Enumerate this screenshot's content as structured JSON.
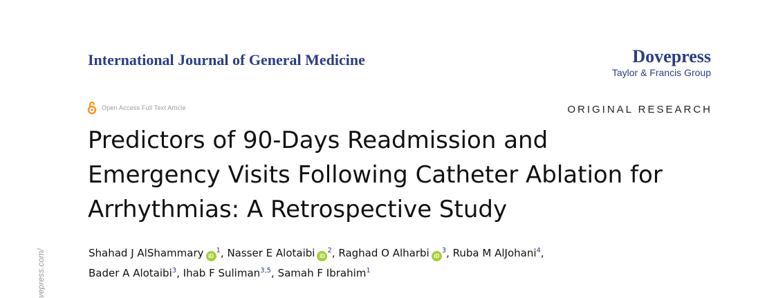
{
  "journal": {
    "title": "International Journal of General Medicine"
  },
  "publisher": {
    "name": "Dovepress",
    "group": "Taylor & Francis Group"
  },
  "access": {
    "label": "Open Access Full Text Article",
    "icon": "open-access-icon",
    "icon_color": "#f7931e"
  },
  "article_type": "ORIGINAL RESEARCH",
  "title_lines": [
    "Predictors of 90-Days Readmission and",
    "Emergency Visits Following Catheter Ablation for",
    "Arrhythmias: A Retrospective Study"
  ],
  "authors": [
    {
      "name": "Shahad J AlShammary",
      "aff": "1",
      "orcid": true
    },
    {
      "name": "Nasser E Alotaibi",
      "aff": "2",
      "orcid": true
    },
    {
      "name": "Raghad O Alharbi",
      "aff": "3",
      "orcid": true
    },
    {
      "name": "Ruba M AlJohani",
      "aff": "4",
      "orcid": false
    },
    {
      "name": "Bader A Alotaibi",
      "aff": "3",
      "orcid": false
    },
    {
      "name": "Ihab F Suliman",
      "aff": "3,5",
      "orcid": false
    },
    {
      "name": "Samah F Ibrahim",
      "aff": "1",
      "orcid": false
    }
  ],
  "orcid_label": "iD",
  "side_text": "vepress.com/",
  "colors": {
    "brand": "#2c3e82",
    "orcid": "#a6ce39"
  }
}
